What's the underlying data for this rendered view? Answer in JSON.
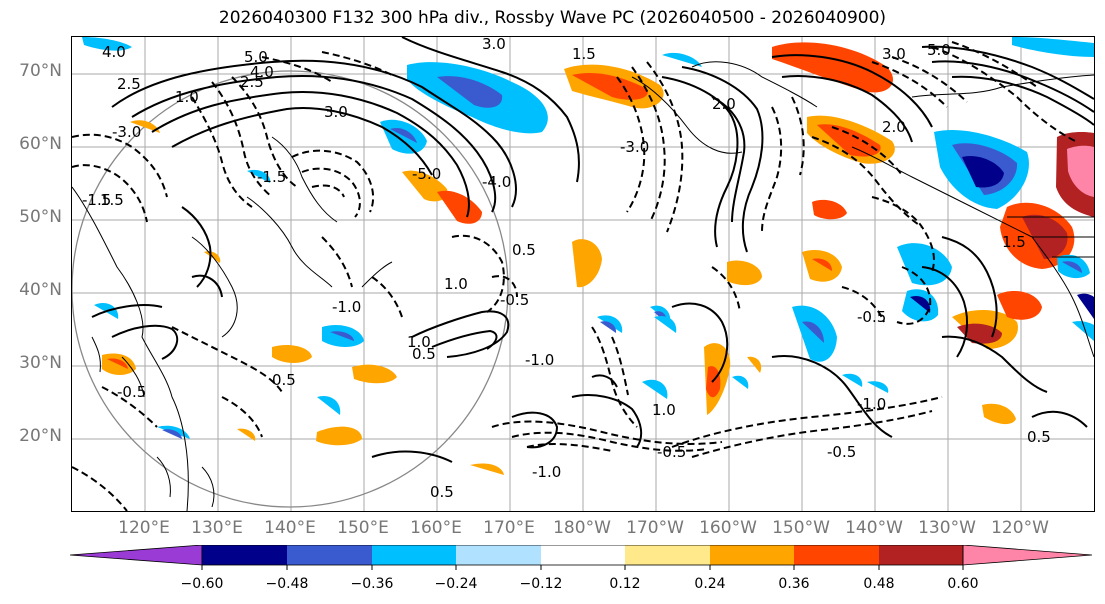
{
  "title": "2026040300 F132 300 hPa div., Rossby Wave PC (2026040500 - 2026040900)",
  "latitude_labels": [
    "70°N",
    "60°N",
    "50°N",
    "40°N",
    "30°N",
    "20°N"
  ],
  "longitude_labels": [
    "120°E",
    "130°E",
    "140°E",
    "150°E",
    "160°E",
    "170°E",
    "180°W",
    "170°W",
    "160°W",
    "150°W",
    "140°W",
    "130°W",
    "120°W"
  ],
  "contour_labels": [
    "3.0",
    "5.0",
    "4.0",
    "2.5",
    "1.5",
    "1.0",
    "0.5",
    "-0.5",
    "-1.0",
    "-1.5",
    "2.0",
    "-5.0",
    "-3.0",
    "-4.0"
  ],
  "colorbar": {
    "tick_labels": [
      "−0.60",
      "−0.48",
      "−0.36",
      "−0.24",
      "−0.12",
      "0.12",
      "0.24",
      "0.36",
      "0.48",
      "0.60"
    ],
    "colors": [
      "#9b3bd6",
      "#00008b",
      "#3a5bd0",
      "#00bfff",
      "#b0e2ff",
      "#ffffff",
      "#ffe98a",
      "#ffa500",
      "#ff4500",
      "#b22222",
      "#ff85a8"
    ]
  },
  "map_colors": {
    "land_line": "#000000",
    "grid": "#aaaaaa",
    "circle": "#888888"
  }
}
